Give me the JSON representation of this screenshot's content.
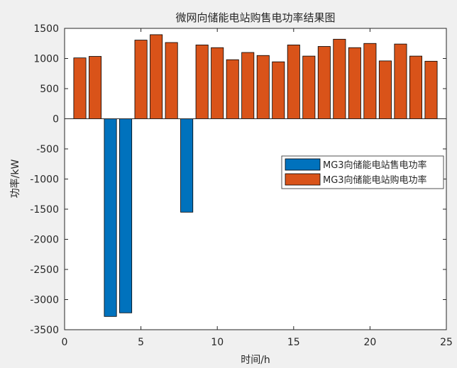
{
  "chart_data": {
    "type": "bar",
    "title": "微网向储能电站购售电功率结果图",
    "xlabel": "时间/h",
    "ylabel": "功率/kW",
    "xlim": [
      0,
      25
    ],
    "ylim": [
      -3500,
      1500
    ],
    "xticks": [
      0,
      5,
      10,
      15,
      20,
      25
    ],
    "yticks": [
      1500,
      1000,
      500,
      0,
      -500,
      -1000,
      -1500,
      -2000,
      -2500,
      -3000,
      -3500
    ],
    "x": [
      1,
      2,
      3,
      4,
      5,
      6,
      7,
      8,
      9,
      10,
      11,
      12,
      13,
      14,
      15,
      16,
      17,
      18,
      19,
      20,
      21,
      22,
      23,
      24
    ],
    "series": [
      {
        "name": "MG3向储能电站售电功率",
        "color": "#0072BD",
        "values": [
          0,
          0,
          -3280,
          -3220,
          0,
          0,
          0,
          -1550,
          0,
          0,
          0,
          0,
          0,
          0,
          0,
          0,
          0,
          0,
          0,
          0,
          0,
          0,
          0,
          0
        ]
      },
      {
        "name": "MG3向储能电站购电功率",
        "color": "#D95319",
        "values": [
          1010,
          1035,
          0,
          0,
          1305,
          1395,
          1265,
          0,
          1225,
          1180,
          980,
          1100,
          1050,
          945,
          1225,
          1040,
          1200,
          1320,
          1180,
          1250,
          960,
          1240,
          1040,
          955
        ]
      }
    ],
    "legend_position": "right",
    "grid": false
  }
}
